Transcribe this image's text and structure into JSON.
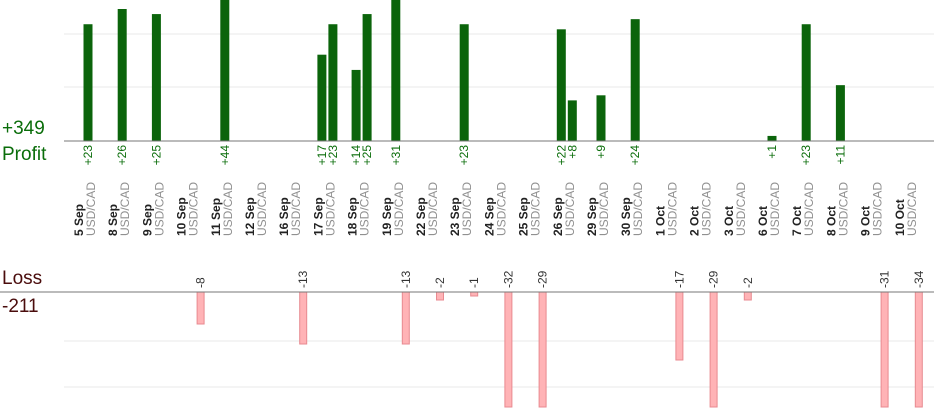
{
  "summary": {
    "profit_total": "+349",
    "profit_label": "Profit",
    "loss_label": "Loss",
    "loss_total": "-211"
  },
  "colors": {
    "profit_bar": "#0b640b",
    "loss_bar": "#ffb3b6",
    "loss_bar_edge": "#e88a90",
    "profit_text": "#0a6d0a",
    "loss_text": "#4a0c0c",
    "grid": "#e8e8e8",
    "axis": "#777777"
  },
  "chart_data": {
    "type": "bar",
    "grid": true,
    "categories": [
      {
        "date": "5 Sep",
        "pair": "USD/CAD"
      },
      {
        "date": "8 Sep",
        "pair": "USD/CAD"
      },
      {
        "date": "9 Sep",
        "pair": "USD/CAD"
      },
      {
        "date": "10 Sep",
        "pair": "USD/CAD"
      },
      {
        "date": "11 Sep",
        "pair": "USD/CAD"
      },
      {
        "date": "12 Sep",
        "pair": "USD/CAD"
      },
      {
        "date": "16 Sep",
        "pair": "USD/CAD"
      },
      {
        "date": "17 Sep",
        "pair": "USD/CAD"
      },
      {
        "date": "18 Sep",
        "pair": "USD/CAD"
      },
      {
        "date": "19 Sep",
        "pair": "USD/CAD"
      },
      {
        "date": "22 Sep",
        "pair": "USD/CAD"
      },
      {
        "date": "23 Sep",
        "pair": "USD/CAD"
      },
      {
        "date": "24 Sep",
        "pair": "USD/CAD"
      },
      {
        "date": "25 Sep",
        "pair": "USD/CAD"
      },
      {
        "date": "26 Sep",
        "pair": "USD/CAD"
      },
      {
        "date": "29 Sep",
        "pair": "USD/CAD"
      },
      {
        "date": "30 Sep",
        "pair": "USD/CAD"
      },
      {
        "date": "1 Oct",
        "pair": "USD/CAD"
      },
      {
        "date": "2 Oct",
        "pair": "USD/CAD"
      },
      {
        "date": "3 Oct",
        "pair": "USD/CAD"
      },
      {
        "date": "6 Oct",
        "pair": "USD/CAD"
      },
      {
        "date": "7 Oct",
        "pair": "USD/CAD"
      },
      {
        "date": "8 Oct",
        "pair": "USD/CAD"
      },
      {
        "date": "9 Oct",
        "pair": "USD/CAD"
      },
      {
        "date": "10 Oct",
        "pair": "USD/CAD"
      }
    ],
    "profits": [
      {
        "day": 0,
        "values": [
          23
        ]
      },
      {
        "day": 1,
        "values": [
          26
        ]
      },
      {
        "day": 2,
        "values": [
          25
        ]
      },
      {
        "day": 4,
        "values": [
          44
        ]
      },
      {
        "day": 7,
        "values": [
          17,
          23
        ]
      },
      {
        "day": 8,
        "values": [
          14,
          25
        ]
      },
      {
        "day": 9,
        "values": [
          31
        ]
      },
      {
        "day": 11,
        "values": [
          23
        ]
      },
      {
        "day": 14,
        "values": [
          22,
          8
        ]
      },
      {
        "day": 15,
        "values": [
          9
        ]
      },
      {
        "day": 16,
        "values": [
          24
        ]
      },
      {
        "day": 20,
        "values": [
          1
        ]
      },
      {
        "day": 21,
        "values": [
          23
        ]
      },
      {
        "day": 22,
        "values": [
          11
        ]
      }
    ],
    "losses": [
      {
        "day": 3,
        "values": [
          -8
        ]
      },
      {
        "day": 6,
        "values": [
          -13
        ]
      },
      {
        "day": 9,
        "values": [
          -13
        ]
      },
      {
        "day": 10,
        "values": [
          -2
        ]
      },
      {
        "day": 11,
        "values": [
          -1
        ]
      },
      {
        "day": 12,
        "values": [
          -32
        ]
      },
      {
        "day": 13,
        "values": [
          -29
        ]
      },
      {
        "day": 17,
        "values": [
          -17
        ]
      },
      {
        "day": 18,
        "values": [
          -29
        ]
      },
      {
        "day": 19,
        "values": [
          -2
        ]
      },
      {
        "day": 23,
        "values": [
          -31
        ]
      },
      {
        "day": 24,
        "values": [
          -34
        ]
      }
    ],
    "profit_ylim": [
      0,
      26
    ],
    "loss_ylim": [
      -25,
      0
    ]
  }
}
